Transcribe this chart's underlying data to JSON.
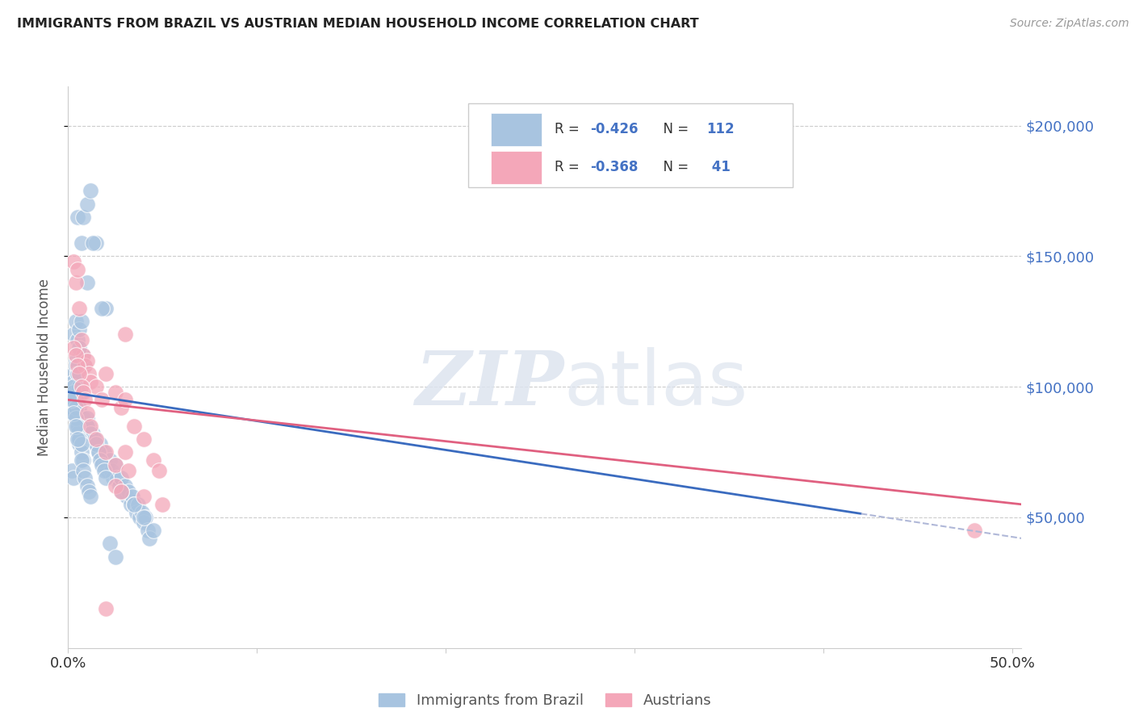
{
  "title": "IMMIGRANTS FROM BRAZIL VS AUSTRIAN MEDIAN HOUSEHOLD INCOME CORRELATION CHART",
  "source": "Source: ZipAtlas.com",
  "ylabel": "Median Household Income",
  "ytick_labels": [
    "$50,000",
    "$100,000",
    "$150,000",
    "$200,000"
  ],
  "ytick_values": [
    50000,
    100000,
    150000,
    200000
  ],
  "legend_r1_label": "R = ",
  "legend_r1_val": "-0.426",
  "legend_n1_label": "N = ",
  "legend_n1_val": "112",
  "legend_r2_label": "R = ",
  "legend_r2_val": "-0.368",
  "legend_n2_label": "N = ",
  "legend_n2_val": " 41",
  "legend_label1": "Immigrants from Brazil",
  "legend_label2": "Austrians",
  "color_brazil": "#a8c4e0",
  "color_austrian": "#f4a7b9",
  "color_line_brazil": "#3a6bbf",
  "color_line_austrian": "#e06080",
  "color_trendline_ext": "#b0b8d8",
  "watermark_zip": "ZIP",
  "watermark_atlas": "atlas",
  "xmin": 0.0,
  "xmax": 0.505,
  "ymin": 0,
  "ymax": 215000,
  "xtick_positions": [
    0.0,
    0.1,
    0.2,
    0.3,
    0.4,
    0.5
  ],
  "xtick_labels": [
    "0.0%",
    "",
    "",
    "",
    "",
    "50.0%"
  ],
  "brazil_scatter_x": [
    0.005,
    0.008,
    0.01,
    0.012,
    0.007,
    0.015,
    0.02,
    0.01,
    0.018,
    0.013,
    0.003,
    0.004,
    0.005,
    0.006,
    0.007,
    0.004,
    0.008,
    0.009,
    0.006,
    0.005,
    0.003,
    0.004,
    0.003,
    0.005,
    0.006,
    0.007,
    0.005,
    0.004,
    0.003,
    0.002,
    0.004,
    0.003,
    0.005,
    0.006,
    0.007,
    0.008,
    0.009,
    0.01,
    0.011,
    0.012,
    0.013,
    0.014,
    0.015,
    0.016,
    0.017,
    0.018,
    0.019,
    0.02,
    0.021,
    0.022,
    0.023,
    0.024,
    0.025,
    0.026,
    0.027,
    0.028,
    0.029,
    0.03,
    0.031,
    0.032,
    0.033,
    0.034,
    0.035,
    0.036,
    0.037,
    0.038,
    0.039,
    0.04,
    0.041,
    0.042,
    0.043,
    0.01,
    0.012,
    0.014,
    0.015,
    0.016,
    0.017,
    0.018,
    0.019,
    0.02,
    0.003,
    0.003,
    0.004,
    0.004,
    0.005,
    0.005,
    0.006,
    0.006,
    0.007,
    0.008,
    0.002,
    0.003,
    0.004,
    0.005,
    0.006,
    0.007,
    0.007,
    0.008,
    0.009,
    0.01,
    0.011,
    0.012,
    0.002,
    0.003,
    0.004,
    0.005,
    0.028,
    0.035,
    0.04,
    0.045,
    0.022,
    0.025
  ],
  "brazil_scatter_y": [
    165000,
    165000,
    170000,
    175000,
    155000,
    155000,
    130000,
    140000,
    130000,
    155000,
    120000,
    125000,
    118000,
    122000,
    125000,
    110000,
    112000,
    108000,
    115000,
    108000,
    105000,
    108000,
    102000,
    105000,
    100000,
    98000,
    105000,
    95000,
    98000,
    92000,
    95000,
    90000,
    88000,
    92000,
    85000,
    88000,
    82000,
    88000,
    85000,
    80000,
    82000,
    78000,
    80000,
    75000,
    78000,
    72000,
    75000,
    70000,
    68000,
    72000,
    68000,
    65000,
    70000,
    65000,
    62000,
    65000,
    60000,
    62000,
    58000,
    60000,
    55000,
    58000,
    55000,
    52000,
    55000,
    50000,
    52000,
    48000,
    50000,
    45000,
    42000,
    85000,
    82000,
    80000,
    78000,
    75000,
    72000,
    70000,
    68000,
    65000,
    100000,
    95000,
    88000,
    92000,
    85000,
    82000,
    78000,
    80000,
    75000,
    72000,
    68000,
    65000,
    88000,
    85000,
    80000,
    78000,
    72000,
    68000,
    65000,
    62000,
    60000,
    58000,
    95000,
    90000,
    85000,
    80000,
    60000,
    55000,
    50000,
    45000,
    40000,
    35000
  ],
  "austrian_scatter_x": [
    0.003,
    0.004,
    0.005,
    0.006,
    0.007,
    0.008,
    0.009,
    0.01,
    0.011,
    0.012,
    0.015,
    0.018,
    0.02,
    0.025,
    0.028,
    0.03,
    0.035,
    0.04,
    0.045,
    0.048,
    0.003,
    0.004,
    0.005,
    0.006,
    0.007,
    0.008,
    0.009,
    0.01,
    0.012,
    0.015,
    0.02,
    0.025,
    0.03,
    0.025,
    0.04,
    0.48,
    0.03,
    0.05,
    0.032,
    0.028,
    0.02
  ],
  "austrian_scatter_y": [
    148000,
    140000,
    145000,
    130000,
    118000,
    112000,
    108000,
    110000,
    105000,
    102000,
    100000,
    95000,
    105000,
    98000,
    92000,
    95000,
    85000,
    80000,
    72000,
    68000,
    115000,
    112000,
    108000,
    105000,
    100000,
    98000,
    95000,
    90000,
    85000,
    80000,
    75000,
    70000,
    75000,
    62000,
    58000,
    45000,
    120000,
    55000,
    68000,
    60000,
    15000
  ],
  "brazil_line_x": [
    0.0,
    0.505
  ],
  "brazil_line_y": [
    98000,
    42000
  ],
  "austrian_line_x": [
    0.0,
    0.505
  ],
  "austrian_line_y": [
    95000,
    55000
  ],
  "ext_line_x": [
    0.505,
    0.505
  ],
  "ext_line_y": [
    42000,
    42000
  ]
}
